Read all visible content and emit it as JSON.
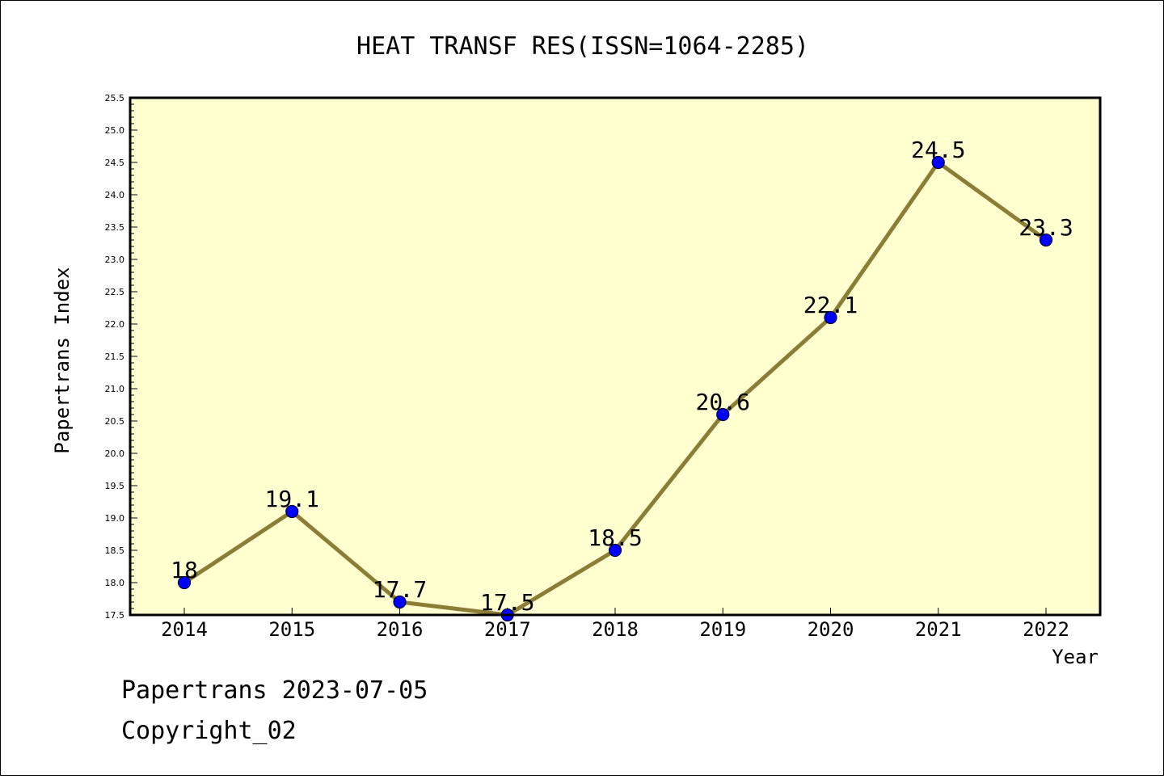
{
  "chart_data": {
    "type": "line",
    "title": "HEAT TRANSF RES(ISSN=1064-2285)",
    "xlabel": "Year",
    "ylabel": "Papertrans Index",
    "categories": [
      "2014",
      "2015",
      "2016",
      "2017",
      "2018",
      "2019",
      "2020",
      "2021",
      "2022"
    ],
    "series": [
      {
        "values": [
          18,
          19.1,
          17.7,
          17.5,
          18.5,
          20.6,
          22.1,
          24.5,
          23.3
        ],
        "data_labels": [
          "18",
          "19.1",
          "17.7",
          "17.5",
          "18.5",
          "20.6",
          "22.1",
          "24.5",
          "23.3"
        ]
      }
    ],
    "ylim": [
      17.5,
      25.5
    ],
    "yticks": [
      "17.5",
      "18.0",
      "18.5",
      "19.0",
      "19.5",
      "20.0",
      "20.5",
      "21.0",
      "21.5",
      "22.0",
      "22.5",
      "23.0",
      "23.5",
      "24.0",
      "24.5",
      "25.0",
      "25.5"
    ],
    "grid": false,
    "legend": "none",
    "colors": {
      "plot_background": "#ffffd0",
      "line": "#8b7d35",
      "marker": "#0000ff",
      "marker_edge": "#000040",
      "frame": "#000000"
    }
  },
  "footer": {
    "line1": "Papertrans 2023-07-05",
    "line2": "Copyright_02"
  }
}
